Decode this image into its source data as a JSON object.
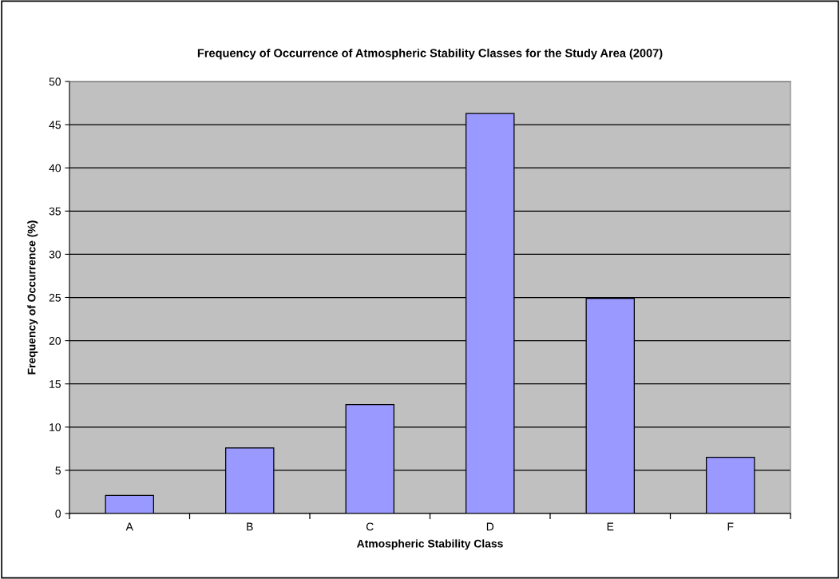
{
  "chart_data": {
    "type": "bar",
    "title": "Frequency of Occurrence of Atmospheric Stability Classes for the Study Area (2007)",
    "xlabel": "Atmospheric Stability Class",
    "ylabel": "Frequency of Occurrence (%)",
    "categories": [
      "A",
      "B",
      "C",
      "D",
      "E",
      "F"
    ],
    "values": [
      2.1,
      7.6,
      12.6,
      46.3,
      24.9,
      6.5
    ],
    "color": "#9999ff",
    "ylim": [
      0,
      50
    ],
    "yticks": [
      0,
      5,
      10,
      15,
      20,
      25,
      30,
      35,
      40,
      45,
      50
    ],
    "grid": "y"
  }
}
